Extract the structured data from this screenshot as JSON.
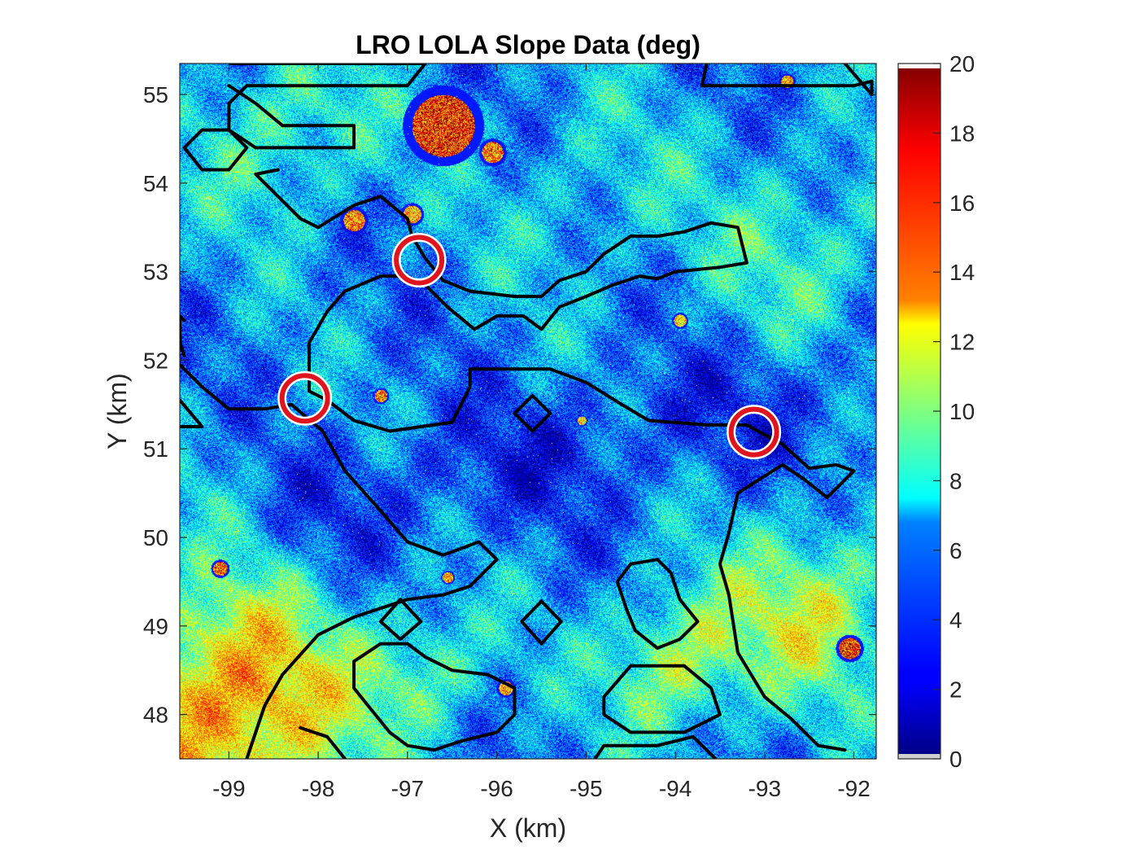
{
  "chart_data": {
    "type": "heatmap",
    "title": "LRO LOLA Slope Data (deg)",
    "xlabel": "X (km)",
    "ylabel": "Y (km)",
    "xlim": [
      -99.55,
      -91.75
    ],
    "ylim": [
      47.5,
      55.35
    ],
    "xticks": [
      -99,
      -98,
      -97,
      -96,
      -95,
      -94,
      -93,
      -92
    ],
    "yticks": [
      48,
      49,
      50,
      51,
      52,
      53,
      54,
      55
    ],
    "colorbar": {
      "colormap": "jet",
      "range": [
        0,
        20
      ],
      "ticks": [
        0,
        2,
        4,
        6,
        8,
        10,
        12,
        14,
        16,
        18,
        20
      ]
    },
    "colors": {
      "contour": "#000000",
      "marker_ring": "#e0141e",
      "marker_inner": "#ffffff"
    },
    "markers": [
      {
        "x": -96.87,
        "y": 53.13
      },
      {
        "x": -98.15,
        "y": 51.57
      },
      {
        "x": -93.12,
        "y": 51.19
      }
    ],
    "contours": [
      [
        [
          -98.98,
          55.35
        ],
        [
          -96.8,
          55.35
        ],
        [
          -97.0,
          55.1
        ],
        [
          -98.8,
          55.1
        ],
        [
          -99.0,
          54.9
        ],
        [
          -99.0,
          54.6
        ],
        [
          -98.7,
          54.4
        ],
        [
          -98.3,
          54.4
        ],
        [
          -98.0,
          54.4
        ],
        [
          -97.6,
          54.4
        ],
        [
          -97.6,
          54.65
        ],
        [
          -98.4,
          54.65
        ],
        [
          -98.7,
          54.9
        ],
        [
          -99.0,
          55.1
        ]
      ],
      [
        [
          -99.5,
          54.4
        ],
        [
          -99.3,
          54.6
        ],
        [
          -99.0,
          54.6
        ],
        [
          -98.8,
          54.4
        ],
        [
          -99.0,
          54.15
        ],
        [
          -99.3,
          54.15
        ],
        [
          -99.5,
          54.4
        ]
      ],
      [
        [
          -98.45,
          54.15
        ],
        [
          -98.7,
          54.1
        ],
        [
          -98.2,
          53.6
        ],
        [
          -98.0,
          53.5
        ],
        [
          -97.6,
          53.75
        ],
        [
          -97.3,
          53.85
        ],
        [
          -97.0,
          53.6
        ],
        [
          -96.95,
          53.4
        ],
        [
          -96.8,
          53.15
        ],
        [
          -96.6,
          52.9
        ],
        [
          -96.3,
          52.78
        ],
        [
          -95.8,
          52.72
        ],
        [
          -95.5,
          52.72
        ],
        [
          -95.3,
          52.9
        ],
        [
          -95.0,
          53.0
        ],
        [
          -94.8,
          53.2
        ],
        [
          -94.5,
          53.4
        ],
        [
          -94.2,
          53.4
        ],
        [
          -93.9,
          53.45
        ],
        [
          -93.6,
          53.55
        ],
        [
          -93.3,
          53.5
        ],
        [
          -93.2,
          53.1
        ],
        [
          -93.5,
          53.05
        ],
        [
          -94.0,
          53.0
        ],
        [
          -94.2,
          52.92
        ],
        [
          -94.4,
          52.95
        ],
        [
          -94.7,
          52.85
        ],
        [
          -95.0,
          52.72
        ],
        [
          -95.3,
          52.6
        ],
        [
          -95.5,
          52.35
        ],
        [
          -95.7,
          52.5
        ],
        [
          -96.0,
          52.5
        ],
        [
          -96.25,
          52.35
        ],
        [
          -96.55,
          52.6
        ],
        [
          -96.8,
          52.85
        ],
        [
          -97.05,
          52.95
        ],
        [
          -97.3,
          52.95
        ],
        [
          -97.7,
          52.78
        ],
        [
          -97.9,
          52.55
        ],
        [
          -98.1,
          52.2
        ],
        [
          -98.1,
          51.65
        ],
        [
          -97.9,
          51.55
        ],
        [
          -97.6,
          51.32
        ],
        [
          -97.2,
          51.2
        ],
        [
          -96.5,
          51.3
        ],
        [
          -96.3,
          51.7
        ],
        [
          -96.3,
          51.9
        ],
        [
          -95.4,
          51.9
        ],
        [
          -95.0,
          51.75
        ],
        [
          -94.6,
          51.5
        ],
        [
          -94.3,
          51.32
        ],
        [
          -93.65,
          51.27
        ],
        [
          -93.2,
          51.27
        ],
        [
          -92.8,
          51.05
        ],
        [
          -92.5,
          50.78
        ],
        [
          -92.2,
          50.82
        ],
        [
          -92.0,
          50.75
        ],
        [
          -92.3,
          50.45
        ],
        [
          -92.55,
          50.65
        ],
        [
          -92.8,
          50.82
        ],
        [
          -93.3,
          50.5
        ],
        [
          -93.4,
          50.05
        ],
        [
          -93.5,
          49.7
        ],
        [
          -93.4,
          49.35
        ],
        [
          -93.3,
          48.7
        ],
        [
          -93.0,
          48.2
        ],
        [
          -92.7,
          47.95
        ],
        [
          -92.4,
          47.65
        ],
        [
          -92.1,
          47.6
        ]
      ],
      [
        [
          -99.5,
          52.05
        ],
        [
          -99.55,
          52.2
        ],
        [
          -99.55,
          52.5
        ],
        [
          -99.5,
          52.45
        ]
      ],
      [
        [
          -99.55,
          51.25
        ],
        [
          -99.3,
          51.25
        ],
        [
          -99.55,
          51.55
        ]
      ],
      [
        [
          -99.55,
          51.95
        ],
        [
          -99.3,
          51.7
        ],
        [
          -99.0,
          51.45
        ],
        [
          -98.6,
          51.45
        ],
        [
          -98.3,
          51.5
        ],
        [
          -97.95,
          51.2
        ],
        [
          -97.7,
          50.75
        ],
        [
          -97.3,
          50.3
        ],
        [
          -97.0,
          49.95
        ],
        [
          -96.6,
          49.8
        ],
        [
          -96.2,
          49.95
        ],
        [
          -96.0,
          49.75
        ],
        [
          -96.3,
          49.45
        ],
        [
          -96.6,
          49.35
        ],
        [
          -97.0,
          49.3
        ],
        [
          -97.6,
          49.1
        ],
        [
          -98.0,
          48.9
        ],
        [
          -98.4,
          48.45
        ],
        [
          -98.6,
          48.1
        ],
        [
          -98.8,
          47.5
        ]
      ],
      [
        [
          -95.6,
          51.6
        ],
        [
          -95.4,
          51.4
        ],
        [
          -95.6,
          51.2
        ],
        [
          -95.8,
          51.4
        ],
        [
          -95.6,
          51.6
        ]
      ],
      [
        [
          -97.08,
          49.3
        ],
        [
          -96.85,
          49.05
        ],
        [
          -97.08,
          48.85
        ],
        [
          -97.3,
          49.05
        ],
        [
          -97.08,
          49.3
        ]
      ],
      [
        [
          -95.5,
          49.28
        ],
        [
          -95.28,
          49.05
        ],
        [
          -95.5,
          48.8
        ],
        [
          -95.72,
          49.05
        ],
        [
          -95.5,
          49.28
        ]
      ],
      [
        [
          -94.5,
          49.7
        ],
        [
          -94.2,
          49.75
        ],
        [
          -94.05,
          49.6
        ],
        [
          -93.95,
          49.3
        ],
        [
          -93.75,
          49.05
        ],
        [
          -93.95,
          48.85
        ],
        [
          -94.2,
          48.75
        ],
        [
          -94.45,
          48.95
        ],
        [
          -94.55,
          49.2
        ],
        [
          -94.65,
          49.5
        ],
        [
          -94.5,
          49.7
        ]
      ],
      [
        [
          -94.5,
          48.55
        ],
        [
          -93.9,
          48.55
        ],
        [
          -93.6,
          48.3
        ],
        [
          -93.5,
          48.0
        ],
        [
          -93.9,
          47.8
        ],
        [
          -94.5,
          47.8
        ],
        [
          -94.8,
          48.0
        ],
        [
          -94.8,
          48.2
        ],
        [
          -94.5,
          48.55
        ]
      ],
      [
        [
          -94.9,
          47.5
        ],
        [
          -94.8,
          47.65
        ],
        [
          -94.2,
          47.65
        ],
        [
          -93.8,
          47.75
        ],
        [
          -93.55,
          47.5
        ]
      ],
      [
        [
          -97.0,
          48.8
        ],
        [
          -97.3,
          48.8
        ],
        [
          -97.6,
          48.6
        ],
        [
          -97.6,
          48.3
        ],
        [
          -97.4,
          48.05
        ],
        [
          -97.2,
          47.8
        ],
        [
          -97.0,
          47.65
        ],
        [
          -96.7,
          47.6
        ],
        [
          -96.4,
          47.7
        ],
        [
          -96.0,
          47.8
        ],
        [
          -95.8,
          48.0
        ],
        [
          -95.8,
          48.3
        ],
        [
          -96.1,
          48.45
        ],
        [
          -96.5,
          48.5
        ],
        [
          -96.8,
          48.65
        ],
        [
          -97.0,
          48.8
        ]
      ],
      [
        [
          -97.7,
          47.5
        ],
        [
          -97.9,
          47.75
        ],
        [
          -98.2,
          47.85
        ]
      ],
      [
        [
          -93.65,
          55.35
        ],
        [
          -93.7,
          55.1
        ],
        [
          -92.0,
          55.1
        ],
        [
          -91.8,
          55.15
        ],
        [
          -91.8,
          55.0
        ],
        [
          -92.1,
          55.35
        ]
      ]
    ],
    "bright_craters": [
      {
        "x": -96.6,
        "y": 54.65,
        "r": 0.35,
        "v": 17
      },
      {
        "x": -96.05,
        "y": 54.35,
        "r": 0.12,
        "v": 15
      },
      {
        "x": -96.95,
        "y": 53.65,
        "r": 0.1,
        "v": 14
      },
      {
        "x": -97.6,
        "y": 53.58,
        "r": 0.12,
        "v": 15
      },
      {
        "x": -97.3,
        "y": 51.6,
        "r": 0.07,
        "v": 15
      },
      {
        "x": -95.9,
        "y": 48.3,
        "r": 0.08,
        "v": 14
      },
      {
        "x": -92.05,
        "y": 48.75,
        "r": 0.12,
        "v": 17
      },
      {
        "x": -99.1,
        "y": 49.65,
        "r": 0.08,
        "v": 16
      },
      {
        "x": -96.55,
        "y": 49.55,
        "r": 0.06,
        "v": 14
      },
      {
        "x": -93.95,
        "y": 52.45,
        "r": 0.07,
        "v": 13
      },
      {
        "x": -95.05,
        "y": 51.32,
        "r": 0.05,
        "v": 13
      },
      {
        "x": -92.75,
        "y": 55.15,
        "r": 0.07,
        "v": 14
      }
    ],
    "slope_regions": [
      {
        "x": -99.0,
        "y": 48.1,
        "r": 1.4,
        "v": 16
      },
      {
        "x": -92.4,
        "y": 49.2,
        "r": 1.0,
        "v": 12
      },
      {
        "x": -94.0,
        "y": 48.6,
        "r": 0.8,
        "v": 12
      },
      {
        "x": -98.4,
        "y": 54.6,
        "r": 1.0,
        "v": 10
      },
      {
        "x": -92.5,
        "y": 53.2,
        "r": 1.2,
        "v": 9
      },
      {
        "x": -96.8,
        "y": 48.5,
        "r": 0.7,
        "v": 10
      },
      {
        "x": -95.0,
        "y": 53.9,
        "r": 1.1,
        "v": 8
      },
      {
        "x": -99.2,
        "y": 50.2,
        "r": 0.9,
        "v": 8
      }
    ]
  }
}
